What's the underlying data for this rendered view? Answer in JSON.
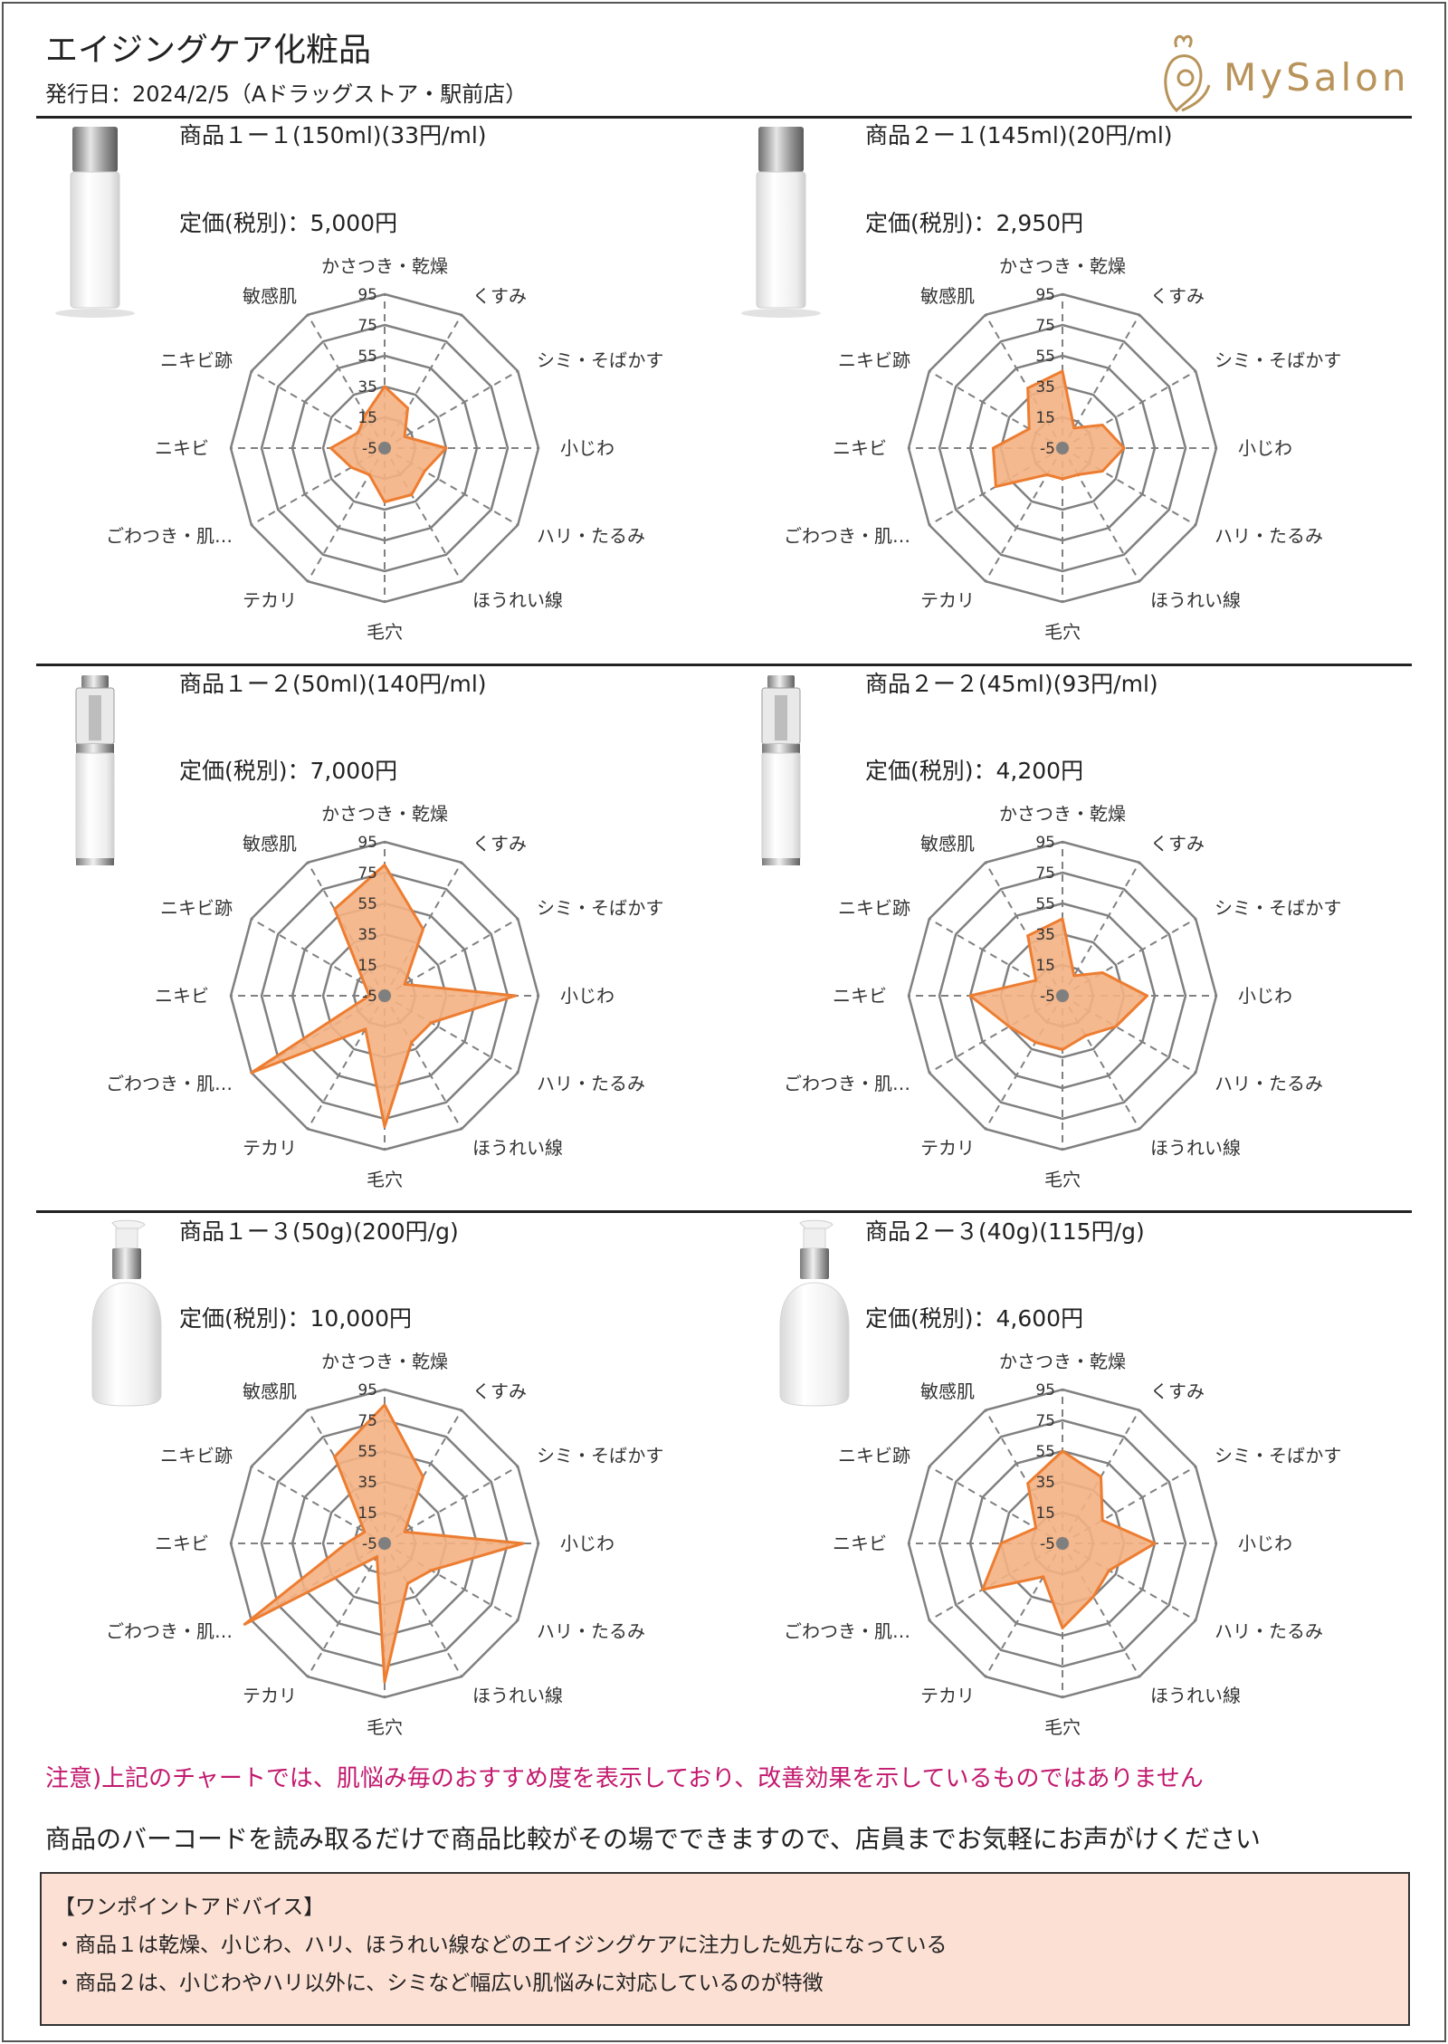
{
  "header": {
    "title": "エイジングケア化粧品",
    "issue_line": "発行日：2024/2/5（Aドラッグストア・駅前店）",
    "logo_text": "MySalon"
  },
  "colors": {
    "fill": "#f4b183",
    "stroke": "#ed7d31",
    "grid": "#808080",
    "note": "#c2186e",
    "advice_bg": "#fce0d4"
  },
  "radar_axes": [
    "かさつき・乾燥",
    "くすみ",
    "シミ・そばかす",
    "小じわ",
    "ハリ・たるみ",
    "ほうれい線",
    "毛穴",
    "テカリ",
    "ごわつき・肌…",
    "ニキビ",
    "ニキビ跡",
    "敏感肌"
  ],
  "radar_ticks": [
    "95",
    "75",
    "55",
    "35",
    "15",
    "-5"
  ],
  "products": [
    {
      "name": "商品１ー１(150ml)(33円/ml)",
      "price": "定価(税別)：5,000円"
    },
    {
      "name": "商品２ー１(145ml)(20円/ml)",
      "price": "定価(税別)：2,950円"
    },
    {
      "name": "商品１ー２(50ml)(140円/ml)",
      "price": "定価(税別)：7,000円"
    },
    {
      "name": "商品２ー２(45ml)(93円/ml)",
      "price": "定価(税別)：4,200円"
    },
    {
      "name": "商品１ー３(50g)(200円/g)",
      "price": "定価(税別)：10,000円"
    },
    {
      "name": "商品２ー３(40g)(115円/g)",
      "price": "定価(税別)：4,600円"
    }
  ],
  "chart_data": [
    {
      "type": "radar",
      "title": "商品１ー１",
      "axis_range": [
        -5,
        95
      ],
      "categories": [
        "かさつき・乾燥",
        "くすみ",
        "シミ・そばかす",
        "小じわ",
        "ハリ・たるみ",
        "ほうれい線",
        "毛穴",
        "テカリ",
        "ごわつき・肌…",
        "ニキビ",
        "ニキビ跡",
        "敏感肌"
      ],
      "values": [
        35,
        25,
        10,
        35,
        25,
        30,
        30,
        15,
        20,
        30,
        15,
        20
      ]
    },
    {
      "type": "radar",
      "title": "商品２ー１",
      "axis_range": [
        -5,
        95
      ],
      "categories": [
        "かさつき・乾燥",
        "くすみ",
        "シミ・そばかす",
        "小じわ",
        "ハリ・たるみ",
        "ほうれい線",
        "毛穴",
        "テカリ",
        "ごわつき・肌…",
        "ニキビ",
        "ニキビ跡",
        "敏感肌"
      ],
      "values": [
        45,
        10,
        25,
        35,
        25,
        15,
        15,
        15,
        45,
        40,
        20,
        40
      ]
    },
    {
      "type": "radar",
      "title": "商品１ー２",
      "axis_range": [
        -5,
        95
      ],
      "categories": [
        "かさつき・乾燥",
        "くすみ",
        "シミ・そばかす",
        "小じわ",
        "ハリ・たるみ",
        "ほうれい線",
        "毛穴",
        "テカリ",
        "ごわつき・肌…",
        "ニキビ",
        "ニキビ跡",
        "敏感肌"
      ],
      "values": [
        80,
        45,
        10,
        80,
        30,
        30,
        80,
        20,
        95,
        5,
        10,
        60
      ]
    },
    {
      "type": "radar",
      "title": "商品２ー２",
      "axis_range": [
        -5,
        95
      ],
      "categories": [
        "かさつき・乾燥",
        "くすみ",
        "シミ・そばかす",
        "小じわ",
        "ハリ・たるみ",
        "ほうれい線",
        "毛穴",
        "テカリ",
        "ごわつき・肌…",
        "ニキビ",
        "ニキビ跡",
        "敏感肌"
      ],
      "values": [
        45,
        10,
        25,
        50,
        35,
        25,
        30,
        30,
        35,
        55,
        15,
        40
      ]
    },
    {
      "type": "radar",
      "title": "商品１ー３",
      "axis_range": [
        -5,
        95
      ],
      "categories": [
        "かさつき・乾燥",
        "くすみ",
        "シミ・そばかす",
        "小じわ",
        "ハリ・たるみ",
        "ほうれい線",
        "毛穴",
        "テカリ",
        "ごわつき・肌…",
        "ニキビ",
        "ニキビ跡",
        "敏感肌"
      ],
      "values": [
        85,
        45,
        10,
        85,
        30,
        25,
        85,
        5,
        100,
        20,
        10,
        60
      ]
    },
    {
      "type": "radar",
      "title": "商品２ー３",
      "axis_range": [
        -5,
        95
      ],
      "categories": [
        "かさつき・乾燥",
        "くすみ",
        "シミ・そばかす",
        "小じわ",
        "ハリ・たるみ",
        "ほうれい線",
        "毛穴",
        "テカリ",
        "ごわつき・肌…",
        "ニキビ",
        "ニキビ跡",
        "敏感肌"
      ],
      "values": [
        55,
        45,
        25,
        55,
        30,
        35,
        50,
        20,
        55,
        35,
        15,
        40
      ]
    }
  ],
  "note": "注意)上記のチャートでは、肌悩み毎のおすすめ度を表示しており、改善効果を示しているものではありません",
  "info": "商品のバーコードを読み取るだけで商品比較がその場でできますので、店員までお気軽にお声がけください",
  "advice": {
    "heading": "【ワンポイントアドバイス】",
    "lines": [
      "・商品１は乾燥、小じわ、ハリ、ほうれい線などのエイジングケアに注力した処方になっている",
      "・商品２は、小じわやハリ以外に、シミなど幅広い肌悩みに対応しているのが特徴"
    ]
  }
}
